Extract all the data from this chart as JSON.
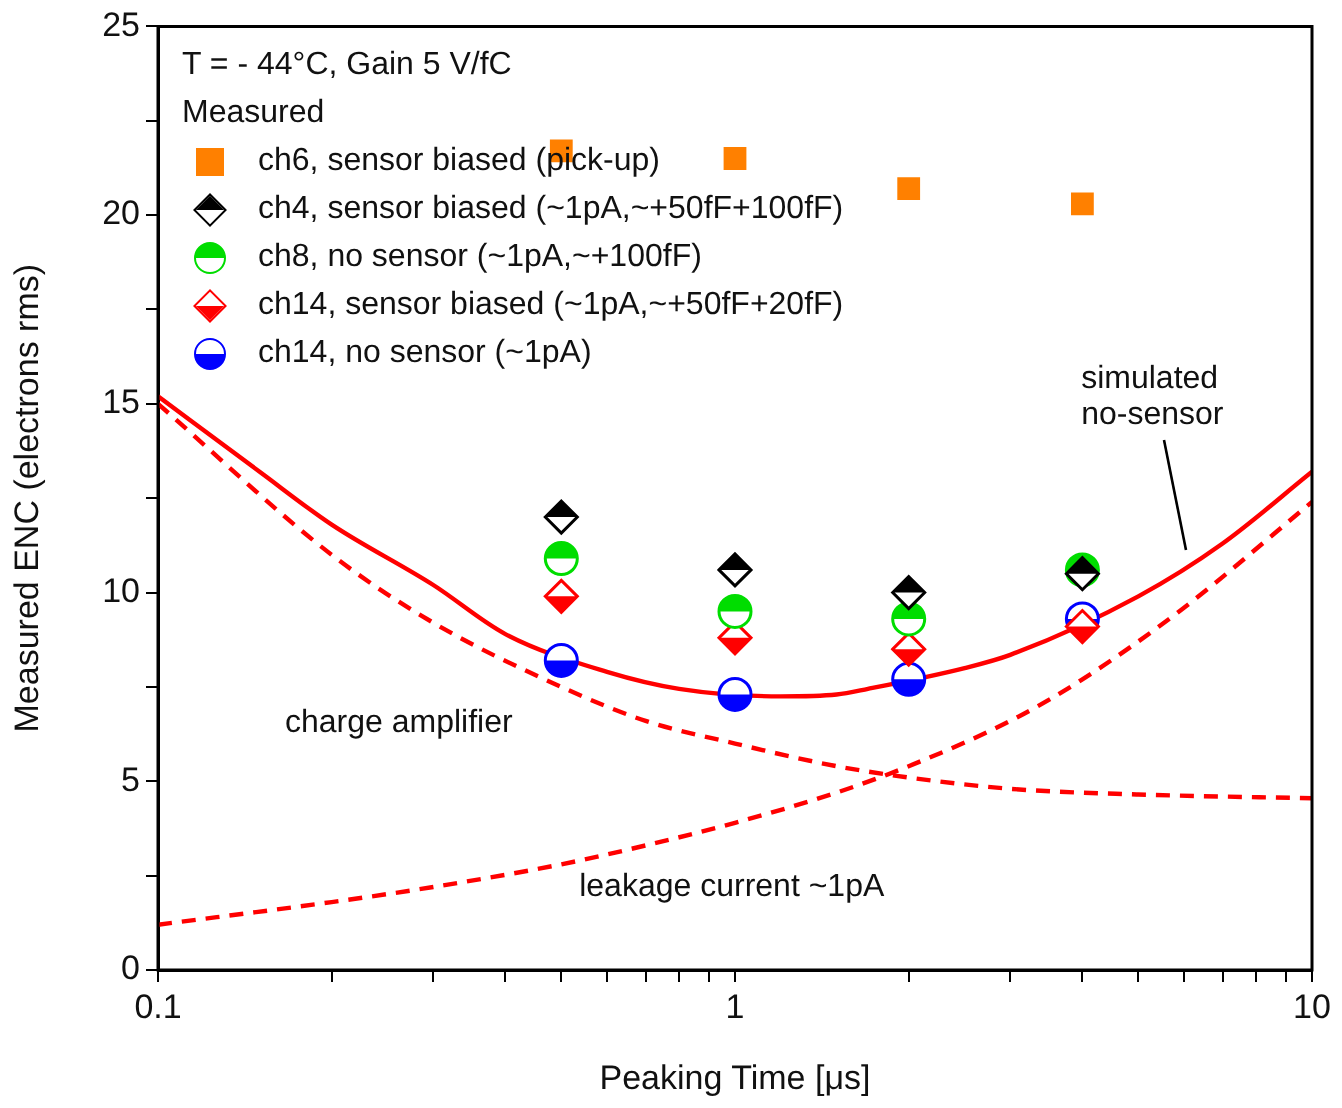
{
  "chart_data": {
    "type": "scatter",
    "xlabel": "Peaking Time [μs]",
    "ylabel": "Measured ENC (electrons rms)",
    "log": "x",
    "grid": false,
    "legend": "top left",
    "legend_title": "Measured",
    "xlim": [
      0.1,
      10
    ],
    "xticks": [
      0.1,
      {
        "value": 0.2,
        "label": null
      },
      {
        "value": 0.3,
        "label": null
      },
      {
        "value": 0.4,
        "label": null
      },
      {
        "value": 0.5,
        "label": null
      },
      {
        "value": 0.6,
        "label": null
      },
      {
        "value": 0.7,
        "label": null
      },
      {
        "value": 0.8,
        "label": null
      },
      {
        "value": 0.9,
        "label": null
      },
      1,
      {
        "value": 2,
        "label": null
      },
      {
        "value": 3,
        "label": null
      },
      {
        "value": 4,
        "label": null
      },
      {
        "value": 5,
        "label": null
      },
      {
        "value": 6,
        "label": null
      },
      {
        "value": 7,
        "label": null
      },
      {
        "value": 8,
        "label": null
      },
      {
        "value": 9,
        "label": null
      },
      10
    ],
    "ylim": [
      0,
      25
    ],
    "yticks": [
      0,
      {
        "value": 2.5,
        "label": null
      },
      5,
      {
        "value": 7.5,
        "label": null
      },
      10,
      {
        "value": 12.5,
        "label": null
      },
      15,
      {
        "value": 17.5,
        "label": null
      },
      20,
      {
        "value": 22.5,
        "label": null
      },
      25
    ],
    "annotations": [
      "T = - 44°C, Gain 5 V/fC",
      "charge amplifier",
      "leakage current ~1pA",
      "simulated no-sensor"
    ],
    "series": [
      {
        "name": "ch6, sensor biased (pick-up)",
        "type": "scatter",
        "marker": "square",
        "color": "#ff8000",
        "x": [
          0.5,
          1,
          2,
          4
        ],
        "values": [
          21.7,
          21.5,
          20.7,
          20.3
        ]
      },
      {
        "name": "ch4, sensor biased (~1pA,~+50fF+100fF)",
        "type": "scatter",
        "marker": "diamond",
        "color": "#000000",
        "x": [
          0.5,
          1,
          2,
          4
        ],
        "values": [
          12.0,
          10.6,
          10.0,
          10.5
        ]
      },
      {
        "name": "ch8, no sensor (~1pA,~+100fF)",
        "type": "scatter",
        "marker": "circle",
        "color": "#00dd00",
        "x": [
          0.5,
          1,
          2,
          4
        ],
        "values": [
          10.9,
          9.5,
          9.3,
          10.6
        ]
      },
      {
        "name": "ch14, sensor biased (~1pA,~+50fF+20fF)",
        "type": "scatter",
        "marker": "diamond",
        "color": "#ff0000",
        "x": [
          0.5,
          1,
          2,
          4
        ],
        "values": [
          9.9,
          8.8,
          8.5,
          9.1
        ]
      },
      {
        "name": "ch14, no sensor (~1pA)",
        "type": "scatter",
        "marker": "circle",
        "color": "#0000ff",
        "x": [
          0.5,
          1,
          2,
          4
        ],
        "values": [
          8.2,
          7.3,
          7.7,
          9.3
        ]
      },
      {
        "type": "line",
        "line_style": "solid",
        "marker": "none",
        "color": "#ff0000",
        "x": [
          0.1,
          0.15,
          0.2,
          0.3,
          0.4,
          0.6,
          0.8,
          1.2,
          1.5,
          1.7,
          2.5,
          3,
          5,
          7,
          10
        ],
        "values": [
          15.2,
          13.2,
          11.8,
          10.2,
          8.9,
          7.9,
          7.45,
          7.25,
          7.3,
          7.45,
          8.0,
          8.35,
          9.9,
          11.3,
          13.2
        ]
      },
      {
        "type": "line",
        "line_style": "dashed",
        "marker": "none",
        "color": "#ff0000",
        "x": [
          0.1,
          0.2,
          0.3,
          0.5,
          0.7,
          1,
          1.5,
          2,
          3,
          5,
          10
        ],
        "values": [
          15.0,
          11.0,
          9.2,
          7.5,
          6.6,
          6.0,
          5.4,
          5.1,
          4.8,
          4.65,
          4.55
        ]
      },
      {
        "type": "line",
        "line_style": "dashed",
        "marker": "none",
        "color": "#ff0000",
        "x": [
          0.1,
          0.2,
          0.3,
          0.5,
          0.7,
          1,
          1.5,
          2,
          3,
          4,
          6,
          10
        ],
        "values": [
          1.2,
          1.8,
          2.2,
          2.8,
          3.3,
          3.9,
          4.7,
          5.4,
          6.6,
          7.7,
          9.6,
          12.4
        ]
      }
    ]
  }
}
